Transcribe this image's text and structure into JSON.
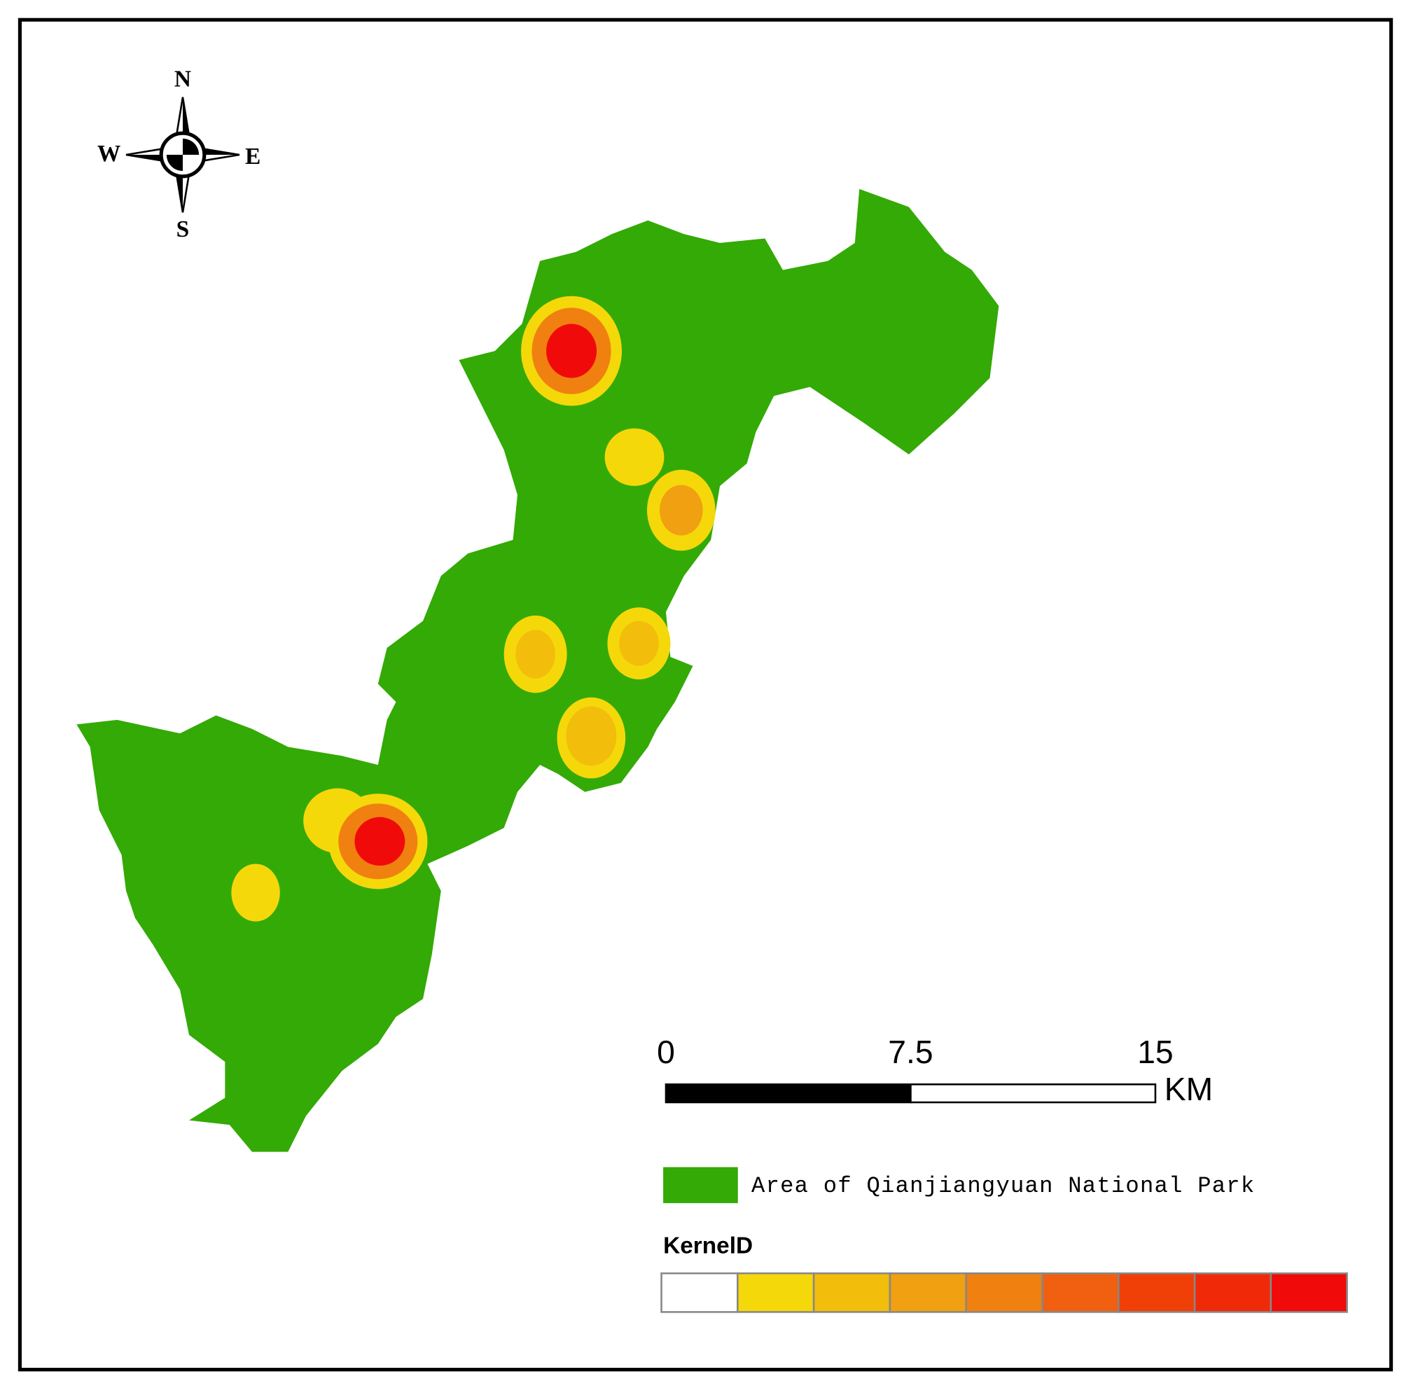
{
  "compass": {
    "north": "N",
    "south": "S",
    "east": "E",
    "west": "W"
  },
  "scale_bar": {
    "ticks": [
      0,
      7.5,
      15
    ],
    "unit": "KM"
  },
  "legend": {
    "park_label": "Area of Qianjiangyuan National Park",
    "park_color": "#33aa05",
    "kernel_title": "KernelD",
    "kernel_colors": [
      "#ffffff",
      "#f5d80a",
      "#f2bd0b",
      "#f0a010",
      "#f08010",
      "#f06010",
      "#f04008",
      "#f02a08",
      "#f00a0a"
    ]
  }
}
